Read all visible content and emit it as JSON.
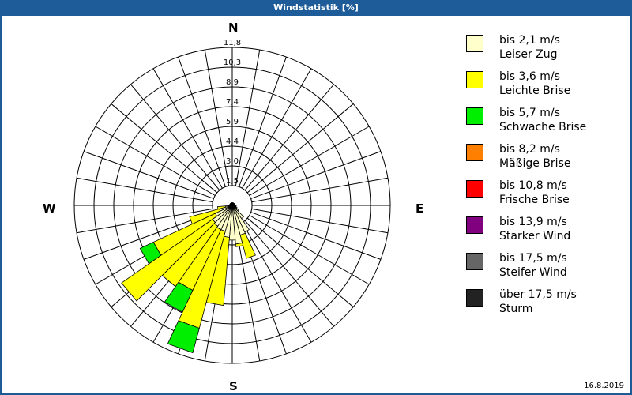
{
  "window": {
    "title": "Windstatistik [%]"
  },
  "compass": {
    "n": "N",
    "e": "E",
    "s": "S",
    "w": "W"
  },
  "footer": {
    "date": "16.8.2019"
  },
  "legend": [
    {
      "line1": "bis 2,1 m/s",
      "line2": "Leiser Zug",
      "color": "#ffffcc"
    },
    {
      "line1": "bis 3,6 m/s",
      "line2": "Leichte Brise",
      "color": "#ffff00"
    },
    {
      "line1": "bis 5,7 m/s",
      "line2": "Schwache Brise",
      "color": "#00ee00"
    },
    {
      "line1": "bis 8,2 m/s",
      "line2": "Mäßige Brise",
      "color": "#ff8000"
    },
    {
      "line1": "bis 10,8 m/s",
      "line2": "Frische Brise",
      "color": "#ff0000"
    },
    {
      "line1": "bis 13,9 m/s",
      "line2": "Starker Wind",
      "color": "#800080"
    },
    {
      "line1": "bis 17,5 m/s",
      "line2": "Steifer Wind",
      "color": "#666666"
    },
    {
      "line1": "über 17,5 m/s",
      "line2": "Sturm",
      "color": "#222222"
    }
  ],
  "chart_data": {
    "type": "wind-rose",
    "title": "Windstatistik [%]",
    "unit": "%",
    "ring_labels": [
      "1,5",
      "3,0",
      "4,4",
      "5,9",
      "7,4",
      "8,9",
      "10,3",
      "11,8"
    ],
    "rmax": 11.8,
    "sector_width_deg": 10,
    "classes": [
      "bis 2,1 m/s",
      "bis 3,6 m/s",
      "bis 5,7 m/s",
      "bis 8,2 m/s",
      "bis 10,8 m/s",
      "bis 13,9 m/s",
      "bis 17,5 m/s",
      "über 17,5 m/s"
    ],
    "sectors": [
      {
        "dir": 0,
        "values": [
          0.2,
          0,
          0
        ]
      },
      {
        "dir": 10,
        "values": [
          0.2,
          0,
          0
        ]
      },
      {
        "dir": 20,
        "values": [
          0.2,
          0,
          0
        ]
      },
      {
        "dir": 30,
        "values": [
          0.2,
          0,
          0
        ]
      },
      {
        "dir": 40,
        "values": [
          0.2,
          0,
          0
        ]
      },
      {
        "dir": 50,
        "values": [
          0.2,
          0,
          0
        ]
      },
      {
        "dir": 60,
        "values": [
          0.2,
          0,
          0
        ]
      },
      {
        "dir": 70,
        "values": [
          0.2,
          0,
          0
        ]
      },
      {
        "dir": 80,
        "values": [
          0.2,
          0,
          0
        ]
      },
      {
        "dir": 90,
        "values": [
          0.2,
          0,
          0
        ]
      },
      {
        "dir": 100,
        "values": [
          0.3,
          0,
          0
        ]
      },
      {
        "dir": 110,
        "values": [
          0.3,
          0,
          0
        ]
      },
      {
        "dir": 120,
        "values": [
          0.4,
          0,
          0
        ]
      },
      {
        "dir": 130,
        "values": [
          0.6,
          0,
          0
        ]
      },
      {
        "dir": 140,
        "values": [
          1.2,
          0,
          0
        ]
      },
      {
        "dir": 150,
        "values": [
          2.2,
          0,
          0
        ]
      },
      {
        "dir": 160,
        "values": [
          2.3,
          1.8,
          0
        ]
      },
      {
        "dir": 170,
        "values": [
          2.9,
          0.2,
          0
        ]
      },
      {
        "dir": 180,
        "values": [
          2.6,
          0,
          0
        ]
      },
      {
        "dir": 190,
        "values": [
          2.4,
          5.1,
          0
        ]
      },
      {
        "dir": 200,
        "values": [
          2.0,
          7.5,
          1.9
        ]
      },
      {
        "dir": 210,
        "values": [
          2.0,
          5.0,
          1.8
        ]
      },
      {
        "dir": 220,
        "values": [
          1.9,
          5.5,
          0
        ]
      },
      {
        "dir": 230,
        "values": [
          1.8,
          8.3,
          0
        ]
      },
      {
        "dir": 240,
        "values": [
          1.4,
          5.1,
          1.1
        ]
      },
      {
        "dir": 250,
        "values": [
          1.0,
          2.3,
          0
        ]
      },
      {
        "dir": 260,
        "values": [
          0.5,
          0.6,
          0
        ]
      },
      {
        "dir": 270,
        "values": [
          0.3,
          0,
          0
        ]
      },
      {
        "dir": 280,
        "values": [
          0.2,
          0,
          0
        ]
      },
      {
        "dir": 290,
        "values": [
          0.2,
          0,
          0
        ]
      },
      {
        "dir": 300,
        "values": [
          0.2,
          0,
          0
        ]
      },
      {
        "dir": 310,
        "values": [
          0.2,
          0,
          0
        ]
      },
      {
        "dir": 320,
        "values": [
          0.2,
          0,
          0
        ]
      },
      {
        "dir": 330,
        "values": [
          0.2,
          0,
          0
        ]
      },
      {
        "dir": 340,
        "values": [
          0.2,
          0,
          0
        ]
      },
      {
        "dir": 350,
        "values": [
          0.2,
          0,
          0
        ]
      }
    ]
  }
}
